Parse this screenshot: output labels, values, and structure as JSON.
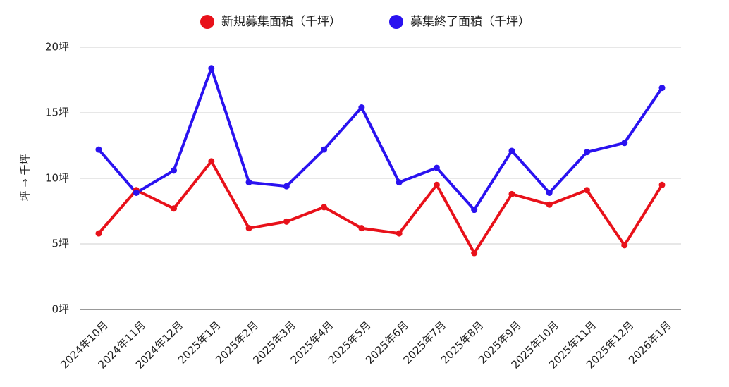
{
  "chart_data": {
    "type": "line",
    "title": "",
    "xlabel": "",
    "ylabel": "坪 → 千坪",
    "ylim": [
      0,
      20
    ],
    "yticks": [
      "0坪",
      "5坪",
      "10坪",
      "15坪",
      "20坪"
    ],
    "ytick_values": [
      0,
      5,
      10,
      15,
      20
    ],
    "grid": true,
    "legend_position": "top-center",
    "categories": [
      "2024年10月",
      "2024年11月",
      "2024年12月",
      "2025年1月",
      "2025年2月",
      "2025年3月",
      "2025年4月",
      "2025年5月",
      "2025年6月",
      "2025年7月",
      "2025年8月",
      "2025年9月",
      "2025年10月",
      "2025年11月",
      "2025年12月",
      "2026年1月"
    ],
    "series": [
      {
        "name": "新規募集面積（千坪）",
        "color": "#e8111a",
        "values": [
          5.8,
          9.1,
          7.7,
          11.3,
          6.2,
          6.7,
          7.8,
          6.2,
          5.8,
          9.5,
          4.3,
          8.8,
          8.0,
          9.1,
          4.9,
          9.5
        ]
      },
      {
        "name": "募集終了面積（千坪）",
        "color": "#2a12f0",
        "values": [
          12.2,
          8.9,
          10.6,
          18.4,
          9.7,
          9.4,
          12.2,
          15.4,
          9.7,
          10.8,
          7.6,
          12.1,
          8.9,
          12.0,
          12.7,
          16.9
        ]
      }
    ]
  }
}
